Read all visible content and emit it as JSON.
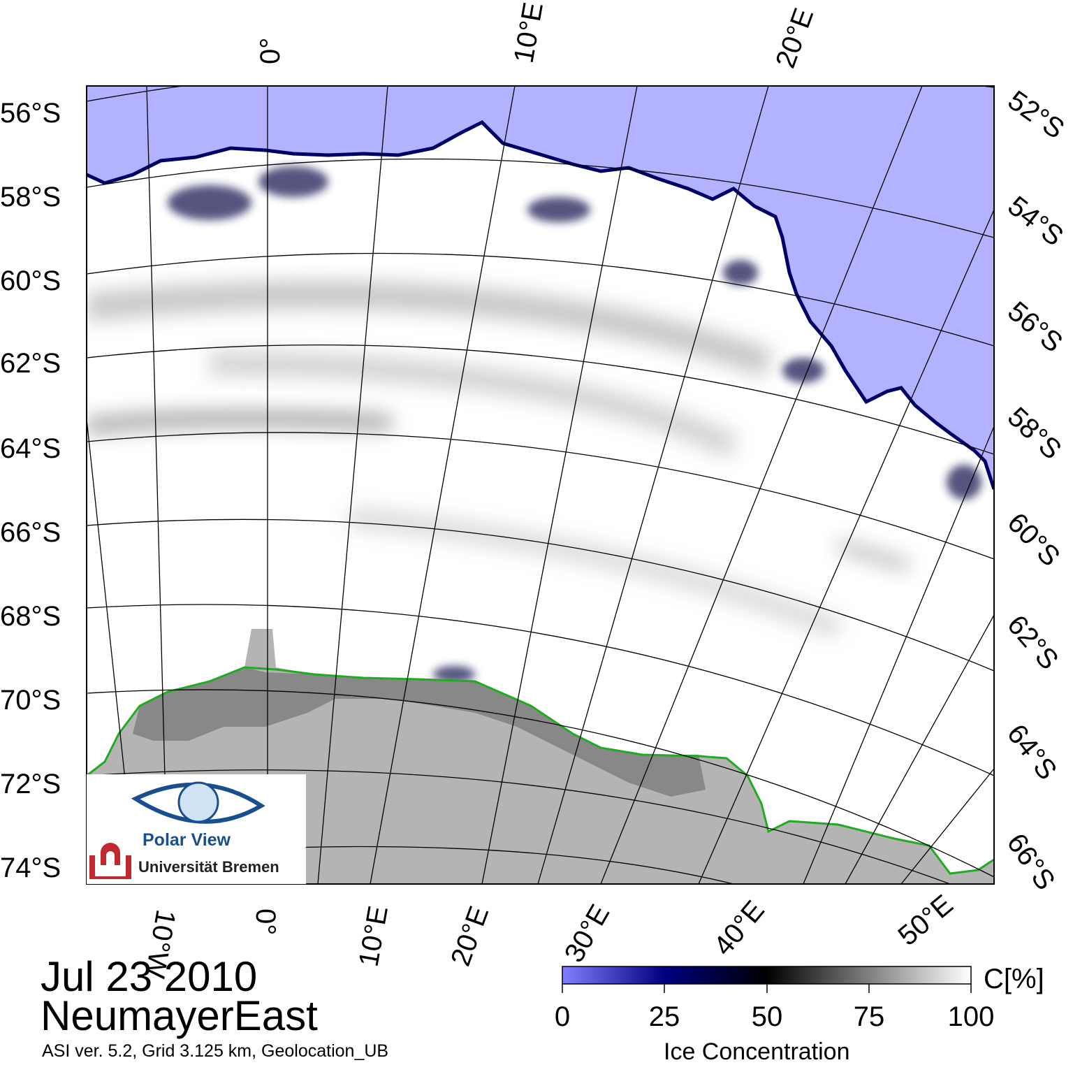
{
  "title": {
    "date": "Jul 23 2010",
    "region": "NeumayerEast",
    "product": "ASI ver. 5.2,  Grid 3.125 km, Geolocation_UB"
  },
  "map": {
    "ocean_color": "#b2b2ff",
    "ice_color": "#ffffff",
    "land_color": "#b4b4b4",
    "ice_shelf_color": "#888888",
    "coastline_color": "#22aa22",
    "ice_edge_color": "#000066",
    "grid_color": "#000000"
  },
  "latitude_labels_left": [
    "56°S",
    "58°S",
    "60°S",
    "62°S",
    "64°S",
    "66°S",
    "68°S",
    "70°S",
    "72°S",
    "74°S"
  ],
  "latitude_labels_right": [
    "52°S",
    "54°S",
    "56°S",
    "58°S",
    "60°S",
    "62°S",
    "64°S",
    "66°S"
  ],
  "longitude_labels_top": [
    "0°",
    "10°E",
    "20°E"
  ],
  "longitude_labels_bottom": [
    "10°W",
    "0°",
    "10°E",
    "20°E",
    "30°E",
    "40°E",
    "50°E"
  ],
  "colorbar": {
    "title": "Ice Concentration",
    "unit": "C[%]",
    "min": 0,
    "max": 100,
    "ticks": [
      "0",
      "25",
      "50",
      "75",
      "100"
    ],
    "stops": [
      "#8080ff",
      "#000080",
      "#000000",
      "#808080",
      "#ffffff"
    ]
  },
  "logo": {
    "name": "Polar View",
    "institution": "Universität Bremen"
  }
}
